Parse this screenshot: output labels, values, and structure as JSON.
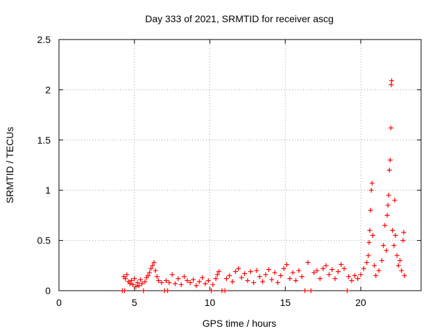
{
  "chart_data": {
    "type": "scatter",
    "title": "Day 333 of 2021, SRMTID for receiver ascg",
    "xlabel": "GPS time / hours",
    "ylabel": "SRMTID / TECUs",
    "xlim": [
      0,
      24
    ],
    "ylim": [
      0,
      2.5
    ],
    "xticks": [
      0,
      5,
      10,
      15,
      20
    ],
    "yticks": [
      0,
      0.5,
      1,
      1.5,
      2,
      2.5
    ],
    "ytick_labels": [
      "0",
      "0.5",
      "1",
      "1.5",
      "2",
      "2.5"
    ],
    "grid": true,
    "marker": "+",
    "color": "#ff0000",
    "series": [
      {
        "name": "SRMTID",
        "points": [
          [
            4.2,
            0.0
          ],
          [
            4.35,
            0.0
          ],
          [
            4.3,
            0.14
          ],
          [
            4.4,
            0.12
          ],
          [
            4.5,
            0.16
          ],
          [
            4.6,
            0.09
          ],
          [
            4.7,
            0.07
          ],
          [
            4.8,
            0.1
          ],
          [
            4.9,
            0.06
          ],
          [
            5.0,
            0.12
          ],
          [
            5.1,
            0.04
          ],
          [
            5.2,
            0.08
          ],
          [
            5.3,
            0.05
          ],
          [
            5.4,
            0.11
          ],
          [
            5.5,
            0.07
          ],
          [
            5.6,
            0.0
          ],
          [
            5.7,
            0.09
          ],
          [
            5.8,
            0.13
          ],
          [
            5.9,
            0.15
          ],
          [
            6.0,
            0.18
          ],
          [
            6.1,
            0.22
          ],
          [
            6.2,
            0.25
          ],
          [
            6.3,
            0.28
          ],
          [
            6.4,
            0.2
          ],
          [
            6.5,
            0.14
          ],
          [
            6.6,
            0.1
          ],
          [
            6.8,
            0.08
          ],
          [
            7.0,
            0.0
          ],
          [
            7.2,
            0.0
          ],
          [
            7.1,
            0.1
          ],
          [
            7.3,
            0.08
          ],
          [
            7.5,
            0.16
          ],
          [
            7.7,
            0.07
          ],
          [
            7.9,
            0.12
          ],
          [
            8.1,
            0.06
          ],
          [
            8.3,
            0.14
          ],
          [
            8.5,
            0.1
          ],
          [
            8.7,
            0.08
          ],
          [
            8.9,
            0.11
          ],
          [
            9.1,
            0.05
          ],
          [
            9.3,
            0.09
          ],
          [
            9.5,
            0.13
          ],
          [
            9.7,
            0.07
          ],
          [
            9.9,
            0.1
          ],
          [
            10.1,
            0.0
          ],
          [
            10.2,
            0.06
          ],
          [
            10.4,
            0.12
          ],
          [
            10.5,
            0.16
          ],
          [
            10.6,
            0.19
          ],
          [
            10.8,
            0.0
          ],
          [
            11.0,
            0.0
          ],
          [
            11.1,
            0.12
          ],
          [
            11.3,
            0.15
          ],
          [
            11.5,
            0.09
          ],
          [
            11.7,
            0.19
          ],
          [
            11.9,
            0.22
          ],
          [
            12.1,
            0.13
          ],
          [
            12.3,
            0.17
          ],
          [
            12.5,
            0.1
          ],
          [
            12.7,
            0.19
          ],
          [
            12.9,
            0.08
          ],
          [
            13.1,
            0.2
          ],
          [
            13.3,
            0.14
          ],
          [
            13.5,
            0.09
          ],
          [
            13.7,
            0.16
          ],
          [
            13.9,
            0.21
          ],
          [
            14.1,
            0.11
          ],
          [
            14.3,
            0.18
          ],
          [
            14.5,
            0.08
          ],
          [
            14.7,
            0.15
          ],
          [
            14.9,
            0.22
          ],
          [
            15.1,
            0.26
          ],
          [
            15.3,
            0.12
          ],
          [
            15.5,
            0.18
          ],
          [
            15.7,
            0.1
          ],
          [
            15.9,
            0.2
          ],
          [
            16.1,
            0.14
          ],
          [
            16.3,
            0.0
          ],
          [
            16.5,
            0.28
          ],
          [
            16.7,
            0.0
          ],
          [
            16.9,
            0.18
          ],
          [
            17.1,
            0.2
          ],
          [
            17.3,
            0.12
          ],
          [
            17.5,
            0.22
          ],
          [
            17.7,
            0.25
          ],
          [
            17.9,
            0.16
          ],
          [
            18.1,
            0.21
          ],
          [
            18.3,
            0.12
          ],
          [
            18.5,
            0.19
          ],
          [
            18.7,
            0.26
          ],
          [
            18.9,
            0.22
          ],
          [
            19.1,
            0.0
          ],
          [
            19.2,
            0.14
          ],
          [
            19.4,
            0.1
          ],
          [
            19.6,
            0.15
          ],
          [
            19.8,
            0.12
          ],
          [
            20.0,
            0.16
          ],
          [
            20.2,
            0.22
          ],
          [
            20.4,
            0.28
          ],
          [
            20.5,
            0.35
          ],
          [
            20.55,
            0.48
          ],
          [
            20.6,
            0.6
          ],
          [
            20.65,
            0.8
          ],
          [
            20.7,
            1.0
          ],
          [
            20.75,
            1.07
          ],
          [
            20.8,
            0.55
          ],
          [
            20.9,
            0.25
          ],
          [
            21.0,
            0.15
          ],
          [
            21.2,
            0.2
          ],
          [
            21.4,
            0.3
          ],
          [
            21.5,
            0.45
          ],
          [
            21.6,
            0.65
          ],
          [
            21.7,
            0.4
          ],
          [
            21.75,
            0.75
          ],
          [
            21.8,
            0.85
          ],
          [
            21.85,
            0.95
          ],
          [
            21.9,
            1.2
          ],
          [
            21.95,
            1.3
          ],
          [
            22.0,
            1.62
          ],
          [
            22.02,
            2.05
          ],
          [
            22.05,
            2.09
          ],
          [
            22.1,
            0.6
          ],
          [
            22.2,
            0.45
          ],
          [
            22.25,
            0.9
          ],
          [
            22.3,
            0.55
          ],
          [
            22.4,
            0.35
          ],
          [
            22.5,
            0.25
          ],
          [
            22.6,
            0.3
          ],
          [
            22.7,
            0.2
          ],
          [
            22.8,
            0.5
          ],
          [
            22.85,
            0.58
          ],
          [
            22.9,
            0.15
          ]
        ]
      }
    ]
  }
}
